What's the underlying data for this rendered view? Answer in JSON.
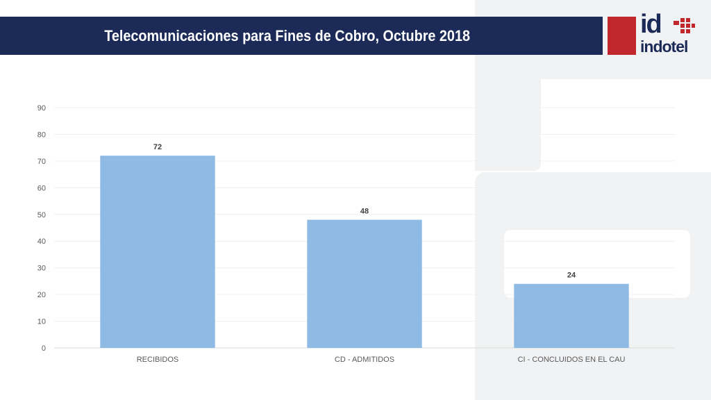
{
  "header": {
    "title": "Telecomunicaciones para Fines de Cobro, Octubre 2018"
  },
  "logo": {
    "mark": "id",
    "name": "indotel",
    "icon": "indotel-logo-icon",
    "brand_red": "#c1272d",
    "brand_navy": "#1b2a57"
  },
  "chart_data": {
    "type": "bar",
    "title": "",
    "xlabel": "",
    "ylabel": "",
    "categories": [
      "RECIBIDOS",
      "CD - ADMITIDOS",
      "CI - CONCLUIDOS EN EL CAU"
    ],
    "values": [
      72,
      48,
      24
    ],
    "ylim": [
      0,
      90
    ],
    "yticks": [
      0,
      10,
      20,
      30,
      40,
      50,
      60,
      70,
      80,
      90
    ],
    "data_labels": true,
    "grid": true,
    "legend": "none",
    "bar_color": "#7fb0e0"
  }
}
